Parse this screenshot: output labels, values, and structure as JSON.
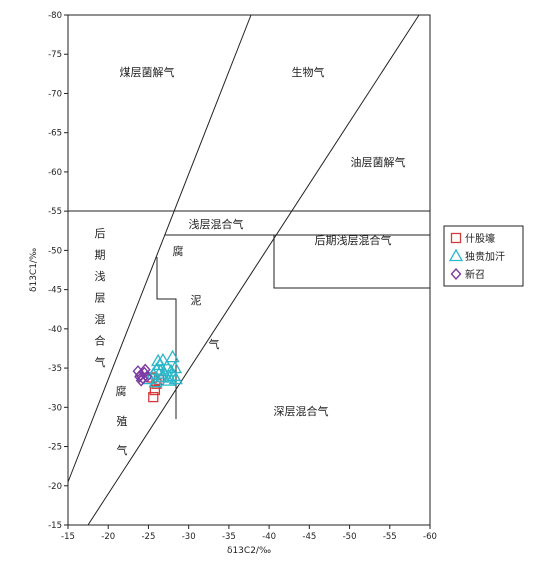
{
  "chart_data": {
    "type": "scatter",
    "xlabel": "δ13C2/‰",
    "ylabel": "δ13C1/‰",
    "xlim": [
      -15,
      -60
    ],
    "ylim": [
      -15,
      -80
    ],
    "x_ticks": [
      "-15",
      "-20",
      "-25",
      "-30",
      "-35",
      "-40",
      "-45",
      "-50",
      "-55",
      "-60"
    ],
    "y_ticks": [
      "-15",
      "-20",
      "-25",
      "-30",
      "-35",
      "-40",
      "-45",
      "-50",
      "-55",
      "-60",
      "-65",
      "-70",
      "-75",
      "-80"
    ],
    "region_labels": {
      "coal_bacterial": "煤层菌解气",
      "biogenic": "生物气",
      "oil_bacterial": "油层菌解气",
      "shallow_mixed": "浅层混合气",
      "late_shallow_mixed_right": "后期浅层混合气",
      "late_shallow_mixed_vertical": [
        "后",
        "期",
        "浅",
        "层",
        "混",
        "合",
        "气"
      ],
      "sapropelic": [
        "腐",
        "泥",
        "气"
      ],
      "humic": [
        "腐",
        "殖",
        "气"
      ],
      "deep_mixed": "深层混合气"
    },
    "series": [
      {
        "name": "什股壕",
        "marker": "square",
        "color": "#d63a3a",
        "points": [
          [
            -25.6,
            -31.3
          ],
          [
            -25.8,
            -32.2
          ],
          [
            -26.0,
            -33.0
          ],
          [
            -26.3,
            -33.5
          ],
          [
            -25.5,
            -33.8
          ]
        ]
      },
      {
        "name": "独贵加汗",
        "marker": "triangle",
        "color": "#2ab7c9",
        "points": [
          [
            -25.2,
            -33.6
          ],
          [
            -25.6,
            -34.2
          ],
          [
            -26.0,
            -34.8
          ],
          [
            -26.4,
            -35.4
          ],
          [
            -26.8,
            -36.0
          ],
          [
            -27.3,
            -35.2
          ],
          [
            -27.8,
            -34.6
          ],
          [
            -28.2,
            -34.0
          ],
          [
            -27.5,
            -33.4
          ],
          [
            -26.7,
            -33.9
          ],
          [
            -26.2,
            -35.9
          ],
          [
            -27.0,
            -34.3
          ],
          [
            -28.0,
            -36.4
          ],
          [
            -28.3,
            -35.0
          ],
          [
            -25.9,
            -33.2
          ],
          [
            -26.5,
            -34.6
          ],
          [
            -27.6,
            -33.8
          ],
          [
            -28.4,
            -33.6
          ]
        ]
      },
      {
        "name": "新召",
        "marker": "diamond",
        "color": "#7c3aa3",
        "points": [
          [
            -23.7,
            -34.6
          ],
          [
            -24.0,
            -34.1
          ],
          [
            -24.3,
            -33.7
          ],
          [
            -24.5,
            -34.4
          ],
          [
            -24.8,
            -33.9
          ],
          [
            -24.1,
            -33.4
          ],
          [
            -24.6,
            -34.8
          ],
          [
            -23.9,
            -33.9
          ]
        ]
      }
    ],
    "legend_position": "right"
  }
}
